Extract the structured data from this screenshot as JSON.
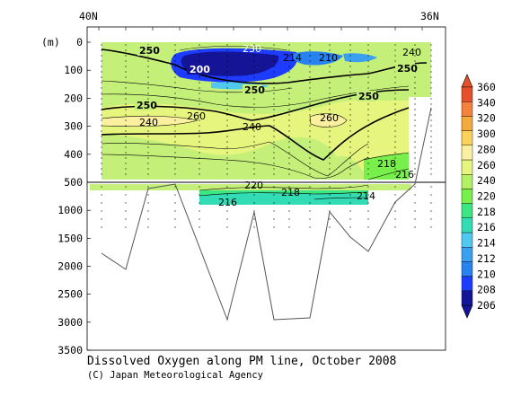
{
  "chart_data": {
    "type": "heatmap",
    "title": "Dissolved Oxygen along PM line, October 2008",
    "credit": "(C) Japan Meteorological Agency",
    "x_top_labels": [
      "40N",
      "36N"
    ],
    "y_unit_label": "(m)",
    "y_scale_break_depth": 500,
    "y_ticks_upper": [
      0,
      100,
      200,
      300,
      400,
      500
    ],
    "y_ticks_lower": [
      1000,
      1500,
      2000,
      2500,
      3000,
      3500
    ],
    "colorbar_levels": [
      206,
      208,
      210,
      212,
      214,
      216,
      218,
      220,
      240,
      260,
      280,
      300,
      320,
      340,
      360
    ],
    "colorbar_colors": [
      "#141496",
      "#1e3cff",
      "#2882f0",
      "#3ca0f0",
      "#50c8f0",
      "#32dcb4",
      "#3ce682",
      "#78f04b",
      "#b4f064",
      "#e6f57d",
      "#faf0a0",
      "#fad25a",
      "#f5aa3c",
      "#f5823c",
      "#e65028"
    ],
    "background_fill_color": "#c4f07a",
    "contour_labels": [
      {
        "text": "250",
        "d": "250"
      },
      {
        "text": "200",
        "d": "200"
      },
      {
        "text": "230",
        "d": "230"
      },
      {
        "text": "210",
        "d": "210"
      },
      {
        "text": "214",
        "d": "214"
      },
      {
        "text": "240",
        "d": "240"
      },
      {
        "text": "260",
        "d": "260"
      },
      {
        "text": "218",
        "d": "218"
      },
      {
        "text": "216",
        "d": "216"
      },
      {
        "text": "220",
        "d": "220"
      }
    ],
    "labels_listed": {
      "upper_left_250": "250",
      "core_200": "200",
      "core_230": "230",
      "surface_210": "210",
      "surface_214": "214",
      "right_240": "240",
      "mid_260_left": "260",
      "mid_260_right": "260",
      "mid_240_left": "240",
      "mid_240_center": "240",
      "deep_218": "218",
      "deep_216_right": "216",
      "lower_220": "220",
      "lower_218": "218",
      "lower_214": "214",
      "lower_216": "216",
      "center_250_a": "250",
      "center_250_b": "250",
      "center_250_c": "250",
      "right_250": "250"
    }
  }
}
